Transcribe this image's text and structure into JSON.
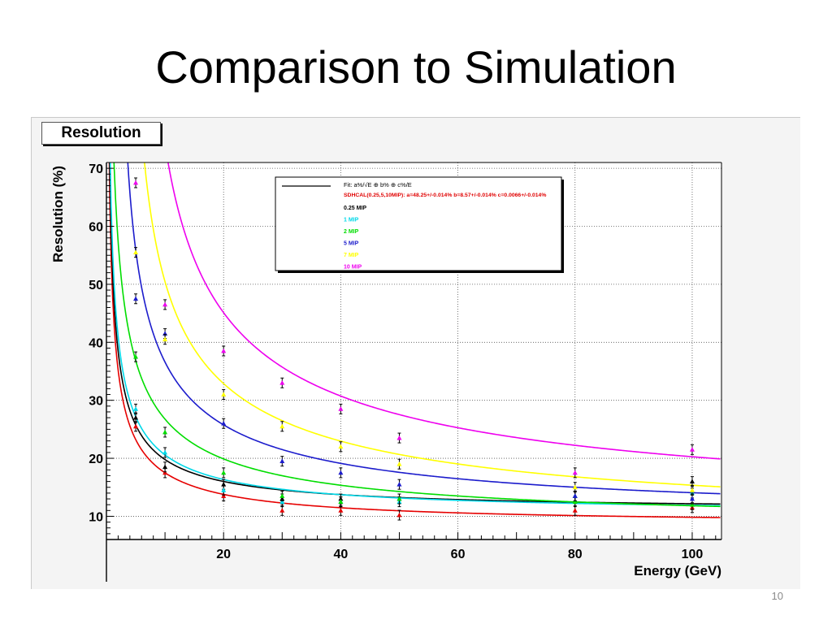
{
  "slide": {
    "title": "Comparison to Simulation",
    "page_number": "10"
  },
  "canvas": {
    "title_box": "Resolution",
    "background": "#f4f4f4"
  },
  "chart_data": {
    "type": "scatter",
    "title": "Resolution",
    "xlabel": "Energy (GeV)",
    "ylabel": "Resolution (%)",
    "xlim": [
      0,
      105
    ],
    "ylim": [
      6,
      71
    ],
    "xticks": [
      20,
      40,
      60,
      80,
      100
    ],
    "yticks": [
      10,
      20,
      30,
      40,
      50,
      60,
      70
    ],
    "grid": true,
    "legend_position": "top-center",
    "legend": {
      "fit_formula": "Fit: a%/√E ⊕ b% ⊕ c%/E",
      "fit_result": "SDHCAL(0.25,5,10MIP): a=48.25+/-0.014% b=8.57+/-0.014% c=0.0066+/-0.014%",
      "fit_result_color": "#e00000"
    },
    "series": [
      {
        "name": "SDHCAL(0.25,5,10MIP)",
        "color": "#e60000",
        "curve": {
          "a": 48.25,
          "b": 8.57
        },
        "x": [
          5,
          10,
          20,
          30,
          40,
          50,
          80,
          100
        ],
        "y": [
          25.5,
          17.5,
          13.5,
          11.0,
          11.0,
          10.2,
          11.0,
          11.5
        ]
      },
      {
        "name": "0.25 MIP",
        "color": "#000000",
        "curve": {
          "a": 52,
          "b": 11
        },
        "x": [
          5,
          10,
          20,
          30,
          40,
          50,
          80,
          100
        ],
        "y": [
          27.0,
          18.5,
          15.5,
          13.0,
          13.0,
          13.0,
          13.5,
          16.0
        ]
      },
      {
        "name": "1 MIP",
        "color": "#00d8e8",
        "curve": {
          "a": 56,
          "b": 10.5
        },
        "x": [
          5,
          10,
          20,
          30,
          40,
          50,
          80,
          100
        ],
        "y": [
          28.5,
          21.0,
          14.5,
          12.5,
          12.5,
          12.5,
          13.5,
          14.0
        ]
      },
      {
        "name": "2 MIP",
        "color": "#00dd00",
        "curve": {
          "a": 80,
          "b": 8.7
        },
        "x": [
          5,
          10,
          20,
          30,
          40,
          50,
          80,
          100
        ],
        "y": [
          37.5,
          24.5,
          17.5,
          13.5,
          12.5,
          13.0,
          12.5,
          12.0
        ]
      },
      {
        "name": "5 MIP",
        "color": "#1c1ccc",
        "curve": {
          "a": 103,
          "b": 9.5,
          "e0": 1.5
        },
        "x": [
          5,
          10,
          20,
          30,
          40,
          50,
          80,
          100
        ],
        "y": [
          47.5,
          41.5,
          26.0,
          19.5,
          17.5,
          15.5,
          13.5,
          13.0
        ]
      },
      {
        "name": "7 MIP",
        "color": "#ffff00",
        "curve": {
          "a": 132,
          "b": 7.5,
          "e0": 3.0
        },
        "x": [
          5,
          10,
          20,
          30,
          40,
          50,
          80,
          100
        ],
        "y": [
          55.5,
          40.5,
          31.0,
          25.5,
          22.0,
          19.0,
          15.0,
          14.5
        ]
      },
      {
        "name": "10 MIP",
        "color": "#ee00ee",
        "curve": {
          "a": 174,
          "b": 9.7,
          "e0": 4.4
        },
        "x": [
          5,
          10,
          20,
          30,
          40,
          50,
          80,
          100
        ],
        "y": [
          67.5,
          46.5,
          38.5,
          33.0,
          28.5,
          23.5,
          17.5,
          21.5
        ]
      }
    ]
  }
}
